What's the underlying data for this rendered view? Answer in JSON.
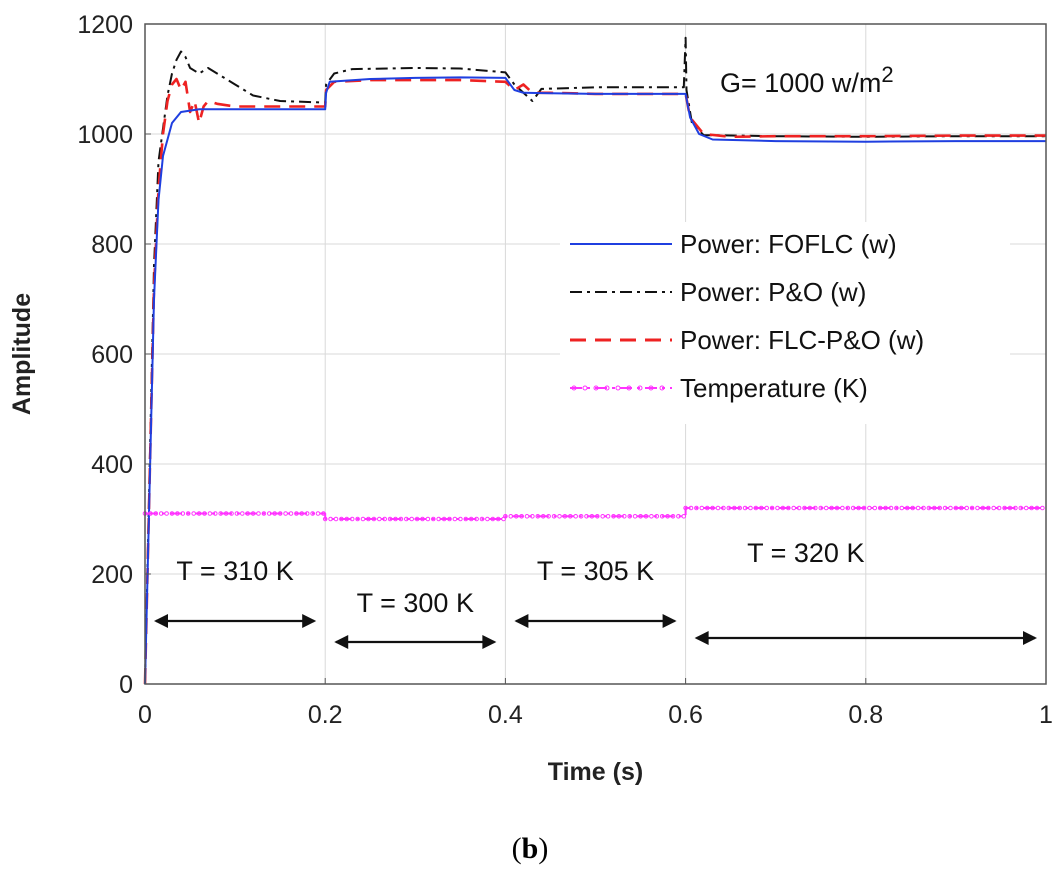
{
  "figure": {
    "panel_label_open": "(",
    "panel_label_letter": "b",
    "panel_label_close": ")"
  },
  "chart_data": {
    "type": "line",
    "title": "",
    "xlabel": "Time (s)",
    "ylabel": "Amplitude",
    "xlim": [
      0,
      1
    ],
    "ylim": [
      0,
      1200
    ],
    "x_ticks": [
      0,
      0.2,
      0.4,
      0.6,
      0.8,
      1
    ],
    "x_tick_labels": [
      "0",
      "0.2",
      "0.4",
      "0.6",
      "0.8",
      "1"
    ],
    "y_ticks": [
      0,
      200,
      400,
      600,
      800,
      1000,
      1200
    ],
    "y_tick_labels": [
      "0",
      "200",
      "400",
      "600",
      "800",
      "1000",
      "1200"
    ],
    "grid": true,
    "legend_position": "center-right",
    "series": [
      {
        "name": "Power: FOFLC (w)",
        "color": "#1f3fe0",
        "style": "solid",
        "points": [
          [
            0,
            0
          ],
          [
            0.005,
            350
          ],
          [
            0.01,
            700
          ],
          [
            0.015,
            880
          ],
          [
            0.02,
            960
          ],
          [
            0.03,
            1020
          ],
          [
            0.04,
            1040
          ],
          [
            0.06,
            1045
          ],
          [
            0.1,
            1045
          ],
          [
            0.2,
            1045
          ],
          [
            0.201,
            1075
          ],
          [
            0.205,
            1095
          ],
          [
            0.25,
            1100
          ],
          [
            0.3,
            1102
          ],
          [
            0.35,
            1103
          ],
          [
            0.4,
            1102
          ],
          [
            0.41,
            1080
          ],
          [
            0.42,
            1075
          ],
          [
            0.45,
            1074
          ],
          [
            0.5,
            1073
          ],
          [
            0.6,
            1073
          ],
          [
            0.605,
            1030
          ],
          [
            0.615,
            1000
          ],
          [
            0.63,
            990
          ],
          [
            0.7,
            987
          ],
          [
            0.8,
            986
          ],
          [
            0.9,
            987
          ],
          [
            1.0,
            987
          ]
        ]
      },
      {
        "name": "Power: P&O (w)",
        "color": "#111111",
        "style": "dashdot",
        "points": [
          [
            0,
            0
          ],
          [
            0.005,
            380
          ],
          [
            0.01,
            760
          ],
          [
            0.015,
            950
          ],
          [
            0.025,
            1070
          ],
          [
            0.03,
            1110
          ],
          [
            0.035,
            1135
          ],
          [
            0.04,
            1150
          ],
          [
            0.045,
            1140
          ],
          [
            0.05,
            1120
          ],
          [
            0.06,
            1110
          ],
          [
            0.07,
            1120
          ],
          [
            0.08,
            1110
          ],
          [
            0.1,
            1090
          ],
          [
            0.12,
            1070
          ],
          [
            0.15,
            1060
          ],
          [
            0.2,
            1057
          ],
          [
            0.201,
            1090
          ],
          [
            0.21,
            1110
          ],
          [
            0.23,
            1118
          ],
          [
            0.3,
            1120
          ],
          [
            0.35,
            1119
          ],
          [
            0.4,
            1112
          ],
          [
            0.41,
            1090
          ],
          [
            0.43,
            1060
          ],
          [
            0.44,
            1082
          ],
          [
            0.5,
            1085
          ],
          [
            0.55,
            1085
          ],
          [
            0.598,
            1085
          ],
          [
            0.6,
            1175
          ],
          [
            0.601,
            1080
          ],
          [
            0.607,
            1020
          ],
          [
            0.62,
            998
          ],
          [
            0.7,
            996
          ],
          [
            0.8,
            995
          ],
          [
            0.9,
            996
          ],
          [
            1.0,
            996
          ]
        ]
      },
      {
        "name": "Power: FLC-P&O (w)",
        "color": "#ee2222",
        "style": "dashed",
        "points": [
          [
            0,
            0
          ],
          [
            0.005,
            360
          ],
          [
            0.01,
            720
          ],
          [
            0.015,
            900
          ],
          [
            0.02,
            1000
          ],
          [
            0.025,
            1060
          ],
          [
            0.03,
            1090
          ],
          [
            0.035,
            1100
          ],
          [
            0.04,
            1080
          ],
          [
            0.045,
            1095
          ],
          [
            0.05,
            1040
          ],
          [
            0.055,
            1060
          ],
          [
            0.06,
            1020
          ],
          [
            0.065,
            1050
          ],
          [
            0.07,
            1060
          ],
          [
            0.08,
            1055
          ],
          [
            0.1,
            1050
          ],
          [
            0.2,
            1050
          ],
          [
            0.201,
            1080
          ],
          [
            0.21,
            1095
          ],
          [
            0.25,
            1098
          ],
          [
            0.3,
            1098
          ],
          [
            0.35,
            1098
          ],
          [
            0.4,
            1095
          ],
          [
            0.41,
            1080
          ],
          [
            0.42,
            1090
          ],
          [
            0.43,
            1075
          ],
          [
            0.45,
            1075
          ],
          [
            0.5,
            1073
          ],
          [
            0.6,
            1073
          ],
          [
            0.605,
            1030
          ],
          [
            0.62,
            1000
          ],
          [
            0.65,
            995
          ],
          [
            0.7,
            996
          ],
          [
            0.8,
            996
          ],
          [
            0.9,
            997
          ],
          [
            1.0,
            997
          ]
        ]
      },
      {
        "name": "Temperature (K)",
        "color": "#ff33ff",
        "style": "dashdot-marker",
        "points": [
          [
            0,
            310
          ],
          [
            0.2,
            310
          ],
          [
            0.2,
            300
          ],
          [
            0.4,
            300
          ],
          [
            0.4,
            305
          ],
          [
            0.6,
            305
          ],
          [
            0.6,
            320
          ],
          [
            1.0,
            320
          ]
        ]
      }
    ],
    "annotations": [
      {
        "text_main": "G",
        "text_rest": "= 1000 w/m",
        "text_sup": "2"
      },
      {
        "text": "T = 310 K",
        "x_range": [
          0.01,
          0.19
        ]
      },
      {
        "text": "T = 300 K",
        "x_range": [
          0.21,
          0.39
        ]
      },
      {
        "text": "T = 305 K",
        "x_range": [
          0.41,
          0.59
        ]
      },
      {
        "text": "T = 320 K",
        "x_range": [
          0.61,
          0.99
        ]
      }
    ]
  }
}
